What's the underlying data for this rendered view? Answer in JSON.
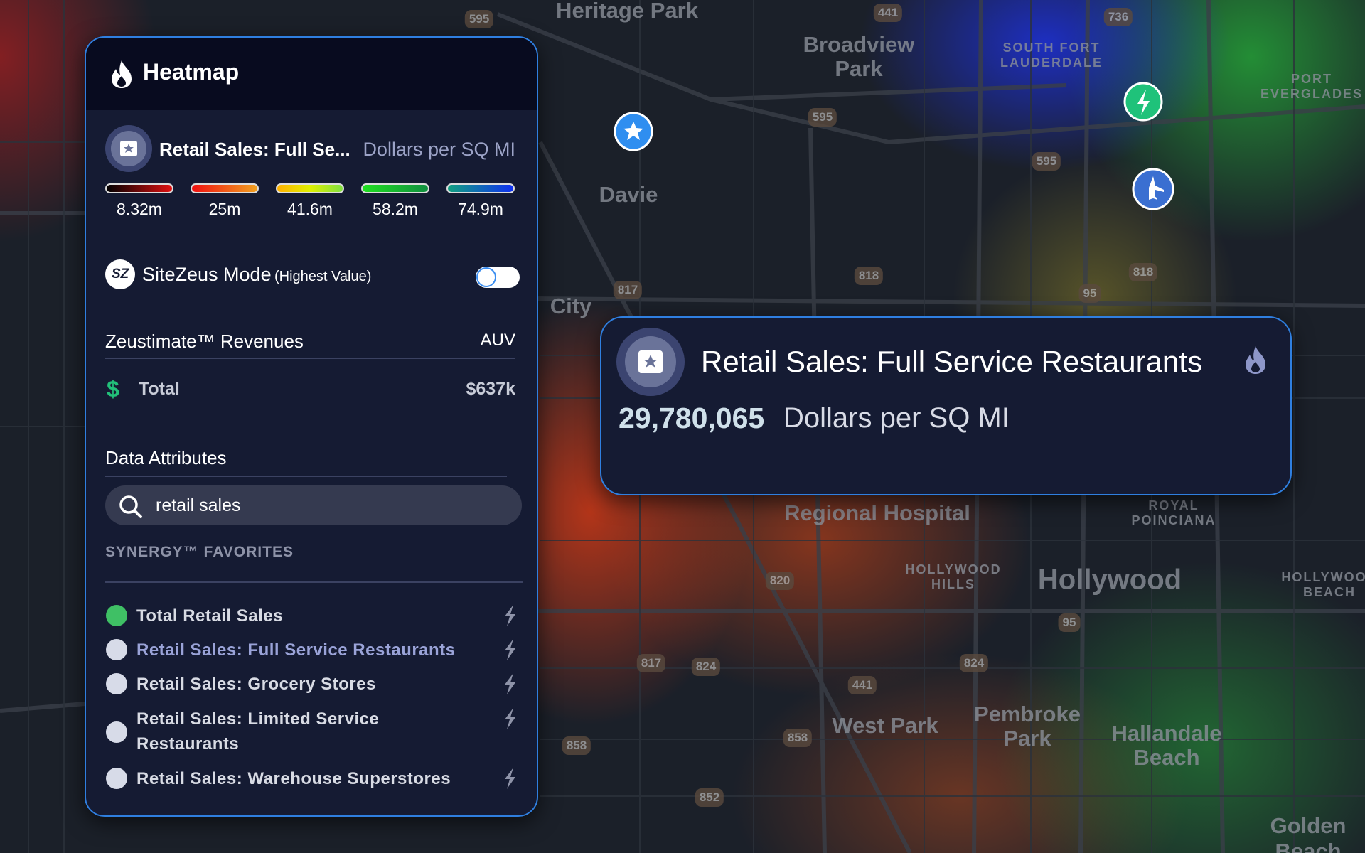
{
  "panel": {
    "title": "Heatmap",
    "layer": {
      "name": "Retail Sales: Full Se...",
      "unit": "Dollars per SQ MI"
    },
    "legend": [
      "8.32m",
      "25m",
      "41.6m",
      "58.2m",
      "74.9m"
    ],
    "mode": {
      "name": "SiteZeus Mode",
      "note": "(Highest Value)",
      "logo": "SZ"
    },
    "revenues": {
      "title": "Zeustimate™ Revenues",
      "column": "AUV",
      "icon": "$",
      "label": "Total",
      "value": "$637k"
    },
    "attributes": {
      "title": "Data Attributes",
      "search": "retail sales",
      "section": "SYNERGY™ FAVORITES",
      "items": [
        "Total Retail Sales",
        "Retail Sales: Full Service Restaurants",
        "Retail Sales: Grocery Stores",
        "Retail Sales: Limited Service Restaurants",
        "Retail Sales: Warehouse Superstores"
      ]
    }
  },
  "popup": {
    "title": "Retail Sales: Full Service Restaurants",
    "value": "29,780,065",
    "unit": "Dollars per SQ MI"
  },
  "map": {
    "labels": [
      "Heritage Park",
      "Broadview Park",
      "SOUTH FORT LAUDERDALE",
      "PORT EVERGLADES",
      "Davie",
      "City",
      "Regional Hospital",
      "ROYAL POINCIANA",
      "HOLLYWOOD HILLS",
      "Hollywood",
      "HOLLYWOOD BEACH",
      "West Park",
      "Pembroke Park",
      "Hallandale Beach",
      "Golden Beach"
    ],
    "shields": [
      "595",
      "441",
      "736",
      "595",
      "595",
      "817",
      "818",
      "818",
      "95",
      "820",
      "95",
      "817",
      "824",
      "441",
      "824",
      "858",
      "858",
      "852"
    ]
  }
}
